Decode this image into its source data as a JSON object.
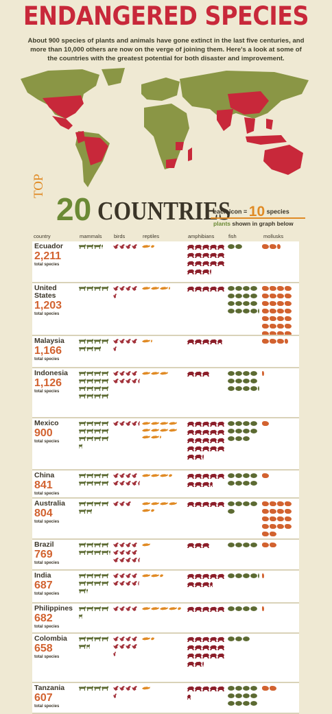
{
  "title": "ENDANGERED SPECIES",
  "intro": "About 900 species of plants and animals have gone extinct in the last five centuries, and more than 10,000 others are now on the verge of joining them. Here's a look at some of the countries with the greatest potential for both disaster and improvement.",
  "colors": {
    "red": "#c8283a",
    "green": "#6b8a35",
    "orange": "#e08a24",
    "dark": "#3b3528",
    "bg": "#efe9d3"
  },
  "header": {
    "top": "TOP",
    "twenty": "20",
    "countries": "COUNTRIES",
    "each_icon_prefix": "each icon =",
    "each_icon_value": "10",
    "each_icon_suffix": "species",
    "plants_label": "plants",
    "plants_suffix": "shown in graph below"
  },
  "columns": {
    "country": "country",
    "mammals": "mammals",
    "birds": "birds",
    "reptiles": "reptiles",
    "amphibians": "amphibians",
    "fish": "fish",
    "mollusks": "mollusks"
  },
  "total_label": "total species",
  "rows": [
    {
      "name": "Ecuador",
      "total": "2,211",
      "counts": {
        "mammals": 3.1,
        "birds": 4,
        "reptiles": 1.5,
        "amphibians": 18.2,
        "fish": 2,
        "mollusks": 2.5
      }
    },
    {
      "name": "United States",
      "total": "1,203",
      "counts": {
        "mammals": 4,
        "birds": 4.5,
        "reptiles": 3.2,
        "amphibians": 5,
        "fish": 16.1,
        "mollusks": 30
      }
    },
    {
      "name": "Malaysia",
      "total": "1,166",
      "counts": {
        "mammals": 7,
        "birds": 4.5,
        "reptiles": 1.2,
        "amphibians": 4.7,
        "fish": 0,
        "mollusks": 3.5
      }
    },
    {
      "name": "Indonesia",
      "total": "1,126",
      "counts": {
        "mammals": 16,
        "birds": 8.3,
        "reptiles": 3,
        "amphibians": 3,
        "fish": 12.2,
        "mollusks": 0.3
      }
    },
    {
      "name": "Mexico",
      "total": "900",
      "counts": {
        "mammals": 12.5,
        "birds": 4.3,
        "reptiles": 10.2,
        "amphibians": 22.2,
        "fish": 11,
        "mollusks": 1
      }
    },
    {
      "name": "China",
      "total": "841",
      "counts": {
        "mammals": 8,
        "birds": 8.3,
        "reptiles": 3.5,
        "amphibians": 8.4,
        "fish": 8,
        "mollusks": 1
      }
    },
    {
      "name": "Australia",
      "total": "804",
      "counts": {
        "mammals": 5.8,
        "birds": 3,
        "reptiles": 5.5,
        "amphibians": 5,
        "fish": 5,
        "mollusks": 18
      }
    },
    {
      "name": "Brazil",
      "total": "769",
      "counts": {
        "mammals": 8.1,
        "birds": 12.3,
        "reptiles": 1,
        "amphibians": 3,
        "fish": 4,
        "mollusks": 2
      }
    },
    {
      "name": "India",
      "total": "687",
      "counts": {
        "mammals": 9.2,
        "birds": 8.2,
        "reptiles": 2.5,
        "amphibians": 8.4,
        "fish": 4.2,
        "mollusks": 0.3
      }
    },
    {
      "name": "Philippines",
      "total": "682",
      "counts": {
        "mammals": 4.5,
        "birds": 4,
        "reptiles": 4.5,
        "amphibians": 5,
        "fish": 4,
        "mollusks": 0.3
      }
    },
    {
      "name": "Colombia",
      "total": "658",
      "counts": {
        "mammals": 5.5,
        "birds": 8.4,
        "reptiles": 1.5,
        "amphibians": 17.2,
        "fish": 3,
        "mollusks": 0
      }
    },
    {
      "name": "Tanzania",
      "total": "607",
      "counts": {
        "mammals": 4,
        "birds": 4.5,
        "reptiles": 1,
        "amphibians": 5.5,
        "fish": 12,
        "mollusks": 2
      }
    }
  ]
}
